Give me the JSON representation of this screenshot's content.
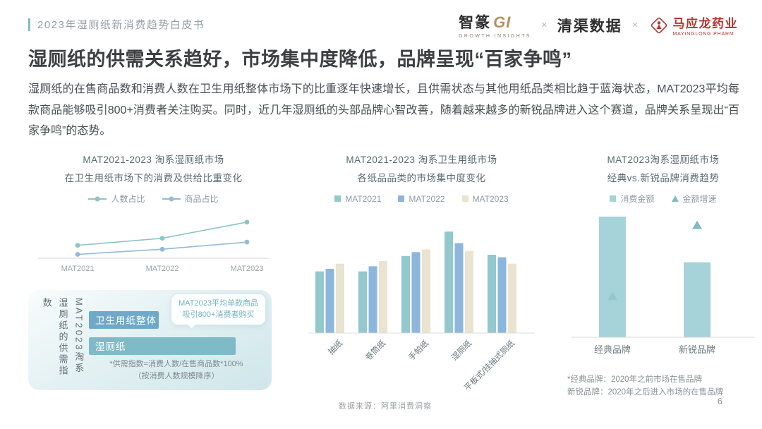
{
  "header": {
    "title": "2023年湿厕纸新消费趋势白皮书",
    "logos": {
      "zhizhuan_cn": "智篆",
      "zhizhuan_gi": "GI",
      "zhizhuan_sub": "GROWTH  INSIGHTS",
      "separator": "×",
      "qingqu": "清渠数据",
      "mayinglong": "马应龙药业",
      "mayinglong_sub": "MAYINGLONG PHARM",
      "mayinglong_color": "#b5342c"
    }
  },
  "headline": "湿厕纸的供需关系趋好，市场集中度降低，品牌呈现“百家争鸣”",
  "body_text": "湿厕纸的在售商品数和消费人数在卫生用纸整体市场下的比重逐年快速增长，且供需状态与其他用纸品类相比趋于蓝海状态，MAT2023平均每款商品能够吸引800+消费者关注购买。同时，近几年湿厕纸的头部品牌心智改善，随着越来越多的新锐品牌进入这个赛道，品牌关系呈现出“百家争鸣”的态势。",
  "chart_data": [
    {
      "id": "line-share",
      "type": "line",
      "title": [
        "MAT2021-2023 淘系湿厕纸市场",
        "在卫生用纸市场下的消费及供给比重变化"
      ],
      "categories": [
        "MAT2021",
        "MAT2022",
        "MAT2023"
      ],
      "series": [
        {
          "name": "人数占比",
          "color": "#8cc5c4",
          "values": [
            0.2,
            0.31,
            0.56
          ]
        },
        {
          "name": "商品占比",
          "color": "#94b9d9",
          "values": [
            0.06,
            0.14,
            0.25
          ]
        }
      ],
      "ylim": [
        0,
        0.7
      ],
      "grid": false,
      "legend_position": "top",
      "note": "y轴无刻度，数值为按绘图高度估算的相对比重"
    },
    {
      "id": "bar-concentration",
      "type": "bar",
      "title": [
        "MAT2021-2023 淘系卫生用纸市场",
        "各纸品品类的市场集中度变化"
      ],
      "categories": [
        "抽纸",
        "卷筒纸",
        "手帕纸",
        "湿厕纸",
        "平板式/挂抽式厕纸"
      ],
      "series": [
        {
          "name": "MAT2021",
          "color": "#93c8cd",
          "values": [
            48,
            48,
            60,
            79,
            61
          ]
        },
        {
          "name": "MAT2022",
          "color": "#8db6dc",
          "values": [
            50,
            52,
            63,
            70,
            59
          ]
        },
        {
          "name": "MAT2023",
          "color": "#e9e3cf",
          "values": [
            54,
            56,
            65,
            64,
            54
          ]
        }
      ],
      "ylim": [
        0,
        100
      ],
      "grid": false,
      "legend_position": "top",
      "note": "y轴无刻度，数值为按绘图高度估算的相对集中度"
    },
    {
      "id": "bar-brands",
      "type": "bar",
      "title": [
        "MAT2023淘系湿厕纸市场",
        "经典vs.新锐品牌消费趋势"
      ],
      "categories": [
        "经典品牌",
        "新锐品牌"
      ],
      "series": [
        {
          "name": "消费金额",
          "mark": "bar",
          "color": "#a6d2d9",
          "values": [
            95,
            59
          ]
        },
        {
          "name": "金额增速",
          "mark": "triangle",
          "color": "#82bac6",
          "values": [
            32,
            88
          ]
        }
      ],
      "ylim": [
        0,
        100
      ],
      "grid": false,
      "legend_position": "top",
      "footnote": [
        "*经典品牌：2020年之前市场在售品牌",
        "新锐品牌：2020年之后进入市场的在售品牌"
      ],
      "note": "y轴无刻度，数值为按绘图高度估算的相对值"
    }
  ],
  "supply_box": {
    "vertical_label": [
      "MAT2023淘系",
      "湿厕纸的供需指数"
    ],
    "bars": [
      {
        "label": "卫生用纸整体",
        "color": "#6fa9c9",
        "width_pct": 40
      },
      {
        "label": "湿厕纸",
        "color": "#7fbac7",
        "width_pct": 84
      }
    ],
    "callout": [
      "MAT2023平均单款商品",
      "吸引800+消费者购买"
    ],
    "footnote": [
      "*供需指数=消费人数/在售商品数*100%",
      "（按消费人数规模降序）"
    ]
  },
  "footer": {
    "source": "数据来源：阿里消费洞察",
    "page": "6"
  }
}
